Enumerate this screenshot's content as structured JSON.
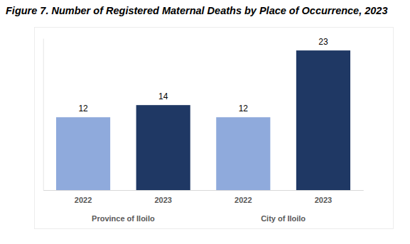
{
  "chart_data": {
    "type": "bar",
    "title": "Figure 7. Number of Registered Maternal Deaths by Place of Occurrence, 2023",
    "categories": [
      "2022",
      "2023",
      "2022",
      "2023"
    ],
    "groups": [
      "Province of Iloilo",
      "City of Iloilo"
    ],
    "values": [
      12,
      14,
      12,
      23
    ],
    "colors": [
      "#8faadc",
      "#1f3864",
      "#8faadc",
      "#1f3864"
    ],
    "ylim": [
      0,
      25
    ],
    "data_labels": true,
    "tick_labels": "x",
    "grid": false
  }
}
